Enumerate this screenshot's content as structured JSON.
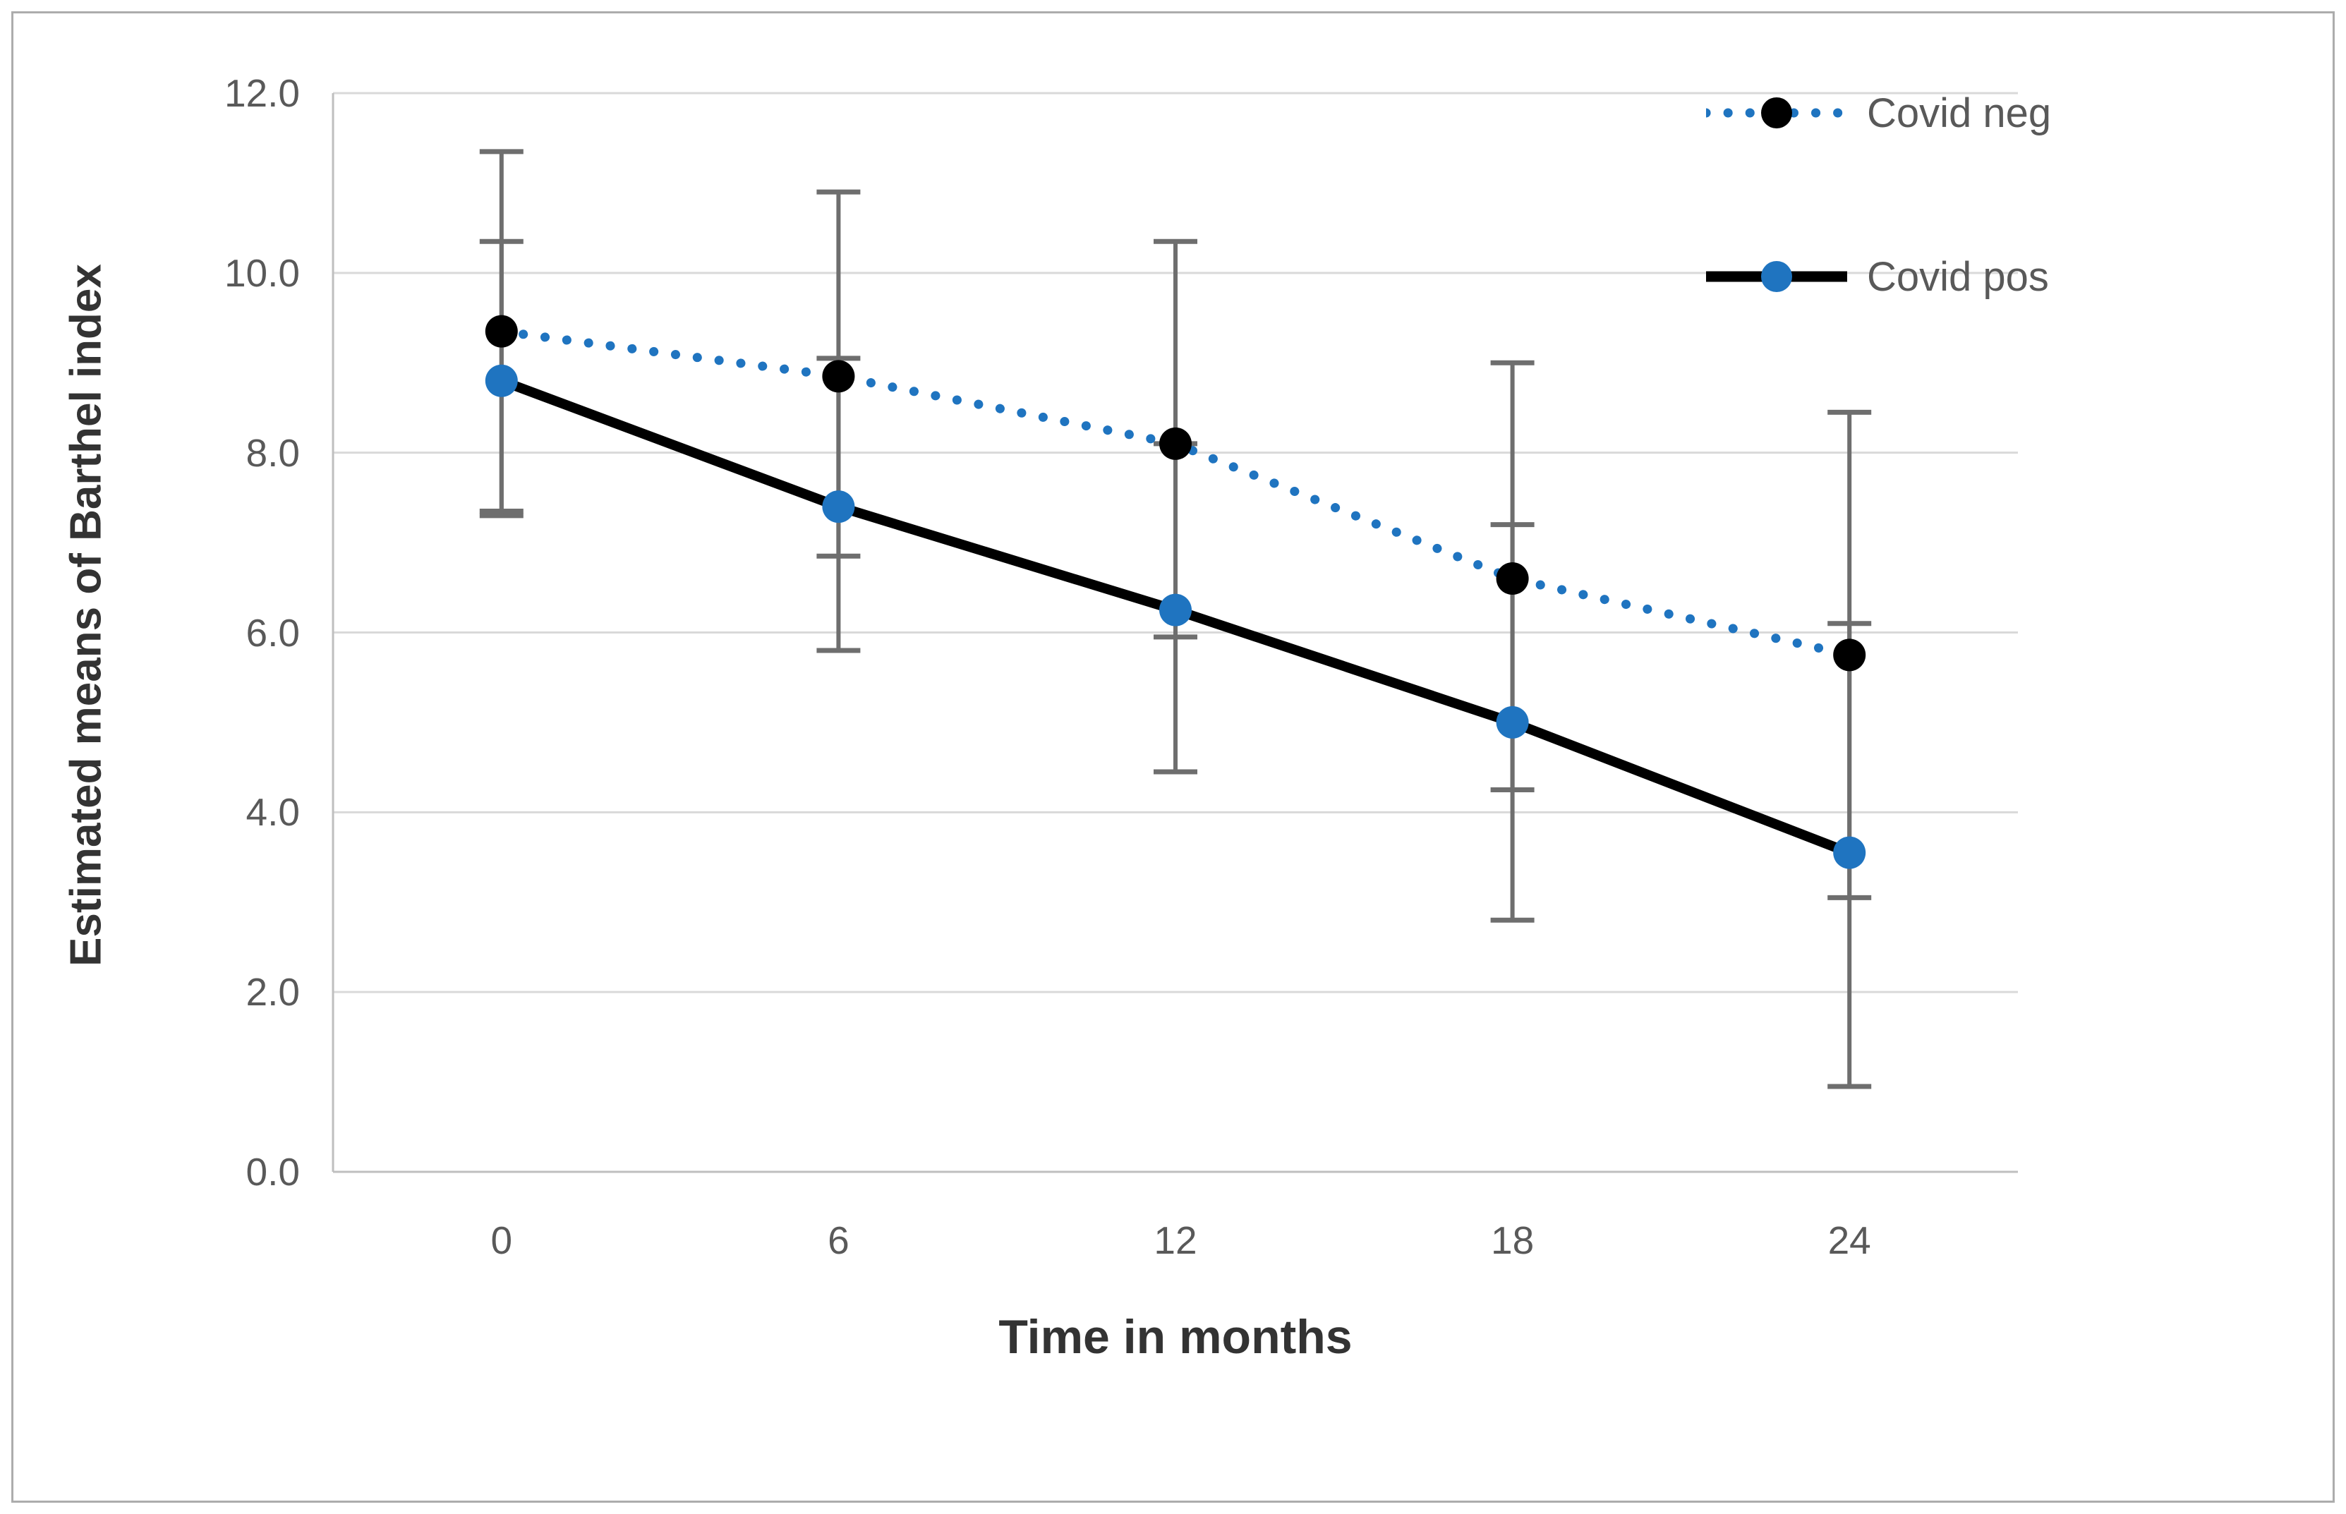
{
  "figure": {
    "y_axis_title": "Estimated means of Barthel index",
    "x_axis_title": "Time in months"
  },
  "chart_data": {
    "type": "line",
    "title": "",
    "xlabel": "Time in months",
    "ylabel": "Estimated means of Barthel index",
    "categories": [
      0,
      6,
      12,
      18,
      24
    ],
    "x_tick_labels": [
      "0",
      "6",
      "12",
      "18",
      "24"
    ],
    "y_tick_labels": [
      "12.0",
      "10.0",
      "8.0",
      "6.0",
      "4.0",
      "2.0",
      "0.0"
    ],
    "ylim": [
      0,
      12
    ],
    "grid": true,
    "legend_position": "top-right",
    "error_bars": true,
    "series": [
      {
        "name": "Covid neg",
        "line_style": "dotted",
        "line_color": "#1F74C0",
        "marker_color": "#000000",
        "values": [
          9.35,
          8.85,
          8.1,
          6.6,
          5.75
        ],
        "ci_low": [
          7.35,
          6.85,
          5.95,
          4.25,
          3.05
        ],
        "ci_high": [
          11.35,
          10.9,
          10.35,
          9.0,
          8.45
        ]
      },
      {
        "name": "Covid pos",
        "line_style": "solid",
        "line_color": "#000000",
        "marker_color": "#1F74C0",
        "values": [
          8.8,
          7.4,
          6.25,
          5.0,
          3.55
        ],
        "ci_low": [
          7.3,
          5.8,
          4.45,
          2.8,
          0.95
        ],
        "ci_high": [
          10.35,
          9.05,
          8.1,
          7.2,
          6.1
        ]
      }
    ]
  },
  "colors": {
    "accent_blue": "#1F74C0",
    "series_black": "#000000",
    "gridline": "#D9D9D9",
    "axis_line": "#BFBFBF",
    "error_bar": "#6E6E6E",
    "tick_text": "#595959",
    "title_text": "#333333",
    "figure_border": "#ACACAC"
  }
}
